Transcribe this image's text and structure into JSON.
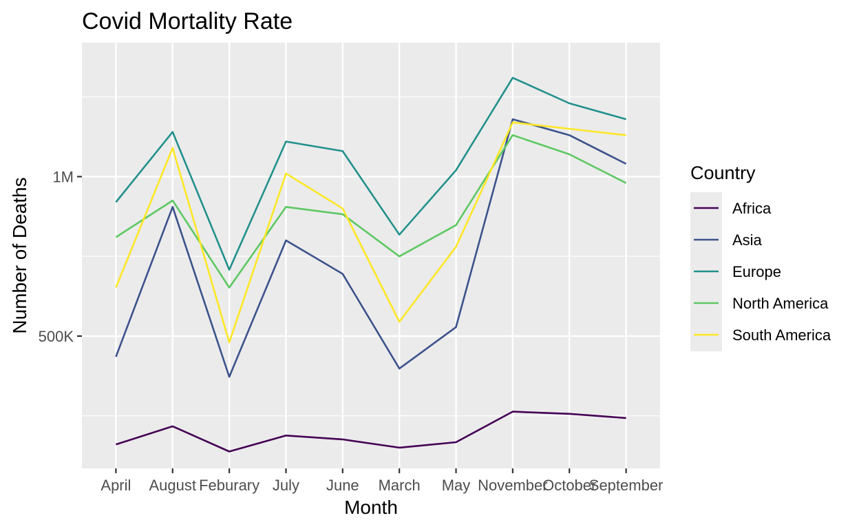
{
  "chart_data": {
    "type": "line",
    "title": "Covid Mortality Rate",
    "xlabel": "Month",
    "ylabel": "Number of Deaths",
    "categories": [
      "April",
      "August",
      "Feburary",
      "July",
      "June",
      "March",
      "May",
      "November",
      "October",
      "September"
    ],
    "ylim": [
      85000,
      1420000
    ],
    "yticks": [
      {
        "value": 500000,
        "label": "500K"
      },
      {
        "value": 1000000,
        "label": "1M"
      }
    ],
    "grid": true,
    "background": "#ebebeb",
    "legend_position": "right",
    "legend_title": "Country",
    "series": [
      {
        "name": "Africa",
        "color": "#440154",
        "values": [
          160000,
          217000,
          138000,
          188000,
          176000,
          150000,
          167000,
          263000,
          256000,
          243000
        ]
      },
      {
        "name": "Asia",
        "color": "#3b528b",
        "values": [
          435000,
          905000,
          372000,
          800000,
          695000,
          398000,
          528000,
          1180000,
          1130000,
          1040000
        ]
      },
      {
        "name": "Europe",
        "color": "#21908c",
        "values": [
          920000,
          1140000,
          708000,
          1110000,
          1080000,
          818000,
          1020000,
          1310000,
          1230000,
          1180000
        ]
      },
      {
        "name": "North America",
        "color": "#5dc863",
        "values": [
          810000,
          925000,
          652000,
          905000,
          882000,
          750000,
          848000,
          1130000,
          1070000,
          980000
        ]
      },
      {
        "name": "South America",
        "color": "#fde725",
        "values": [
          652000,
          1090000,
          480000,
          1010000,
          900000,
          545000,
          780000,
          1170000,
          1150000,
          1130000
        ]
      }
    ]
  }
}
